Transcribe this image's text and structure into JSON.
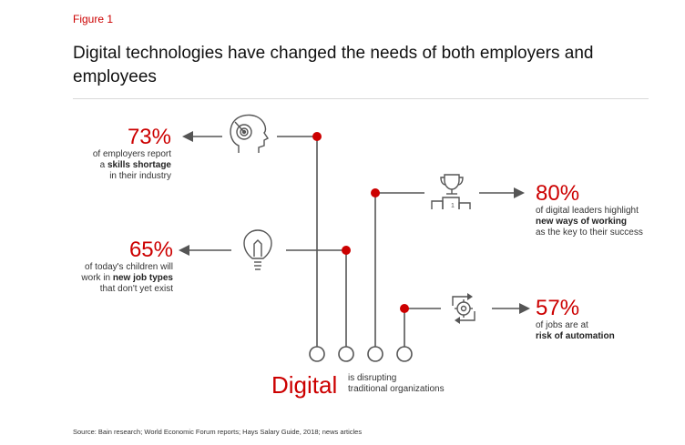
{
  "figure_label": "Figure 1",
  "title": "Digital technologies have changed the needs of both employers and employees",
  "stats": {
    "s73": {
      "pct": "73%",
      "line1": "of employers report",
      "line2_pre": "a ",
      "line2_bold": "skills shortage",
      "line3": "in their industry"
    },
    "s65": {
      "pct": "65%",
      "line1": "of today's children will",
      "line2_pre": "work in ",
      "line2_bold": "new job types",
      "line3": "that don't yet exist"
    },
    "s80": {
      "pct": "80%",
      "line1": "of digital leaders highlight",
      "line2_bold": "new ways of working",
      "line3": "as the key to their success"
    },
    "s57": {
      "pct": "57%",
      "line1": "of jobs are at",
      "line2_bold": "risk of automation"
    }
  },
  "digital": {
    "word": "Digital",
    "desc_line1": "is disrupting",
    "desc_line2": "traditional organizations"
  },
  "icons": [
    "target-head-icon",
    "lightbulb-icon",
    "trophy-podium-icon",
    "gear-cycle-icon"
  ],
  "colors": {
    "accent": "#cc0000",
    "line": "#555555"
  },
  "source": "Source: Bain research; World Economic Forum reports; Hays Salary Guide, 2018; news articles"
}
